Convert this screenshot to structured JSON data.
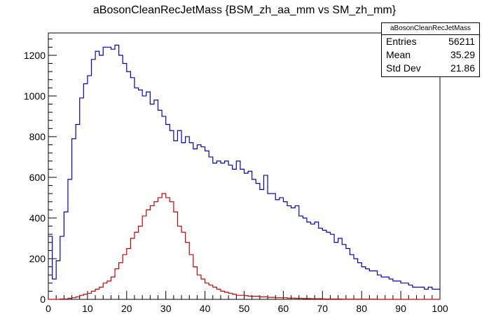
{
  "chart_data": {
    "type": "histogram",
    "title": "aBosonCleanRecJetMass {BSM_zh_aa_mm vs SM_zh_mm}",
    "xlabel": "",
    "ylabel": "",
    "xlim": [
      0,
      100
    ],
    "ylim": [
      0,
      1310
    ],
    "bin_width": 1,
    "x_ticks": [
      0,
      10,
      20,
      30,
      40,
      50,
      60,
      70,
      80,
      90,
      100
    ],
    "y_ticks": [
      0,
      200,
      400,
      600,
      800,
      1000,
      1200
    ],
    "series": [
      {
        "color": "#0000cc",
        "values": [
          310,
          100,
          190,
          310,
          430,
          590,
          790,
          860,
          990,
          1060,
          1100,
          1180,
          1220,
          1200,
          1240,
          1240,
          1230,
          1250,
          1200,
          1160,
          1120,
          1090,
          1040,
          1030,
          1000,
          1020,
          960,
          980,
          930,
          900,
          860,
          830,
          780,
          830,
          770,
          800,
          770,
          740,
          760,
          750,
          730,
          700,
          670,
          680,
          670,
          680,
          660,
          640,
          680,
          640,
          620,
          630,
          590,
          570,
          540,
          610,
          520,
          520,
          490,
          500,
          480,
          460,
          450,
          460,
          410,
          400,
          380,
          370,
          380,
          350,
          340,
          330,
          320,
          280,
          300,
          270,
          250,
          220,
          200,
          180,
          160,
          150,
          140,
          140,
          120,
          110,
          110,
          100,
          90,
          90,
          80,
          80,
          70,
          60,
          60,
          60,
          50,
          60,
          50,
          50
        ]
      },
      {
        "color": "#cc0000",
        "values": [
          0,
          0,
          0,
          2,
          2,
          5,
          8,
          12,
          20,
          25,
          30,
          40,
          50,
          60,
          80,
          90,
          110,
          150,
          180,
          220,
          250,
          300,
          330,
          360,
          410,
          440,
          460,
          480,
          500,
          520,
          500,
          480,
          430,
          360,
          330,
          280,
          220,
          160,
          120,
          100,
          80,
          70,
          60,
          50,
          40,
          35,
          30,
          25,
          20,
          20,
          18,
          16,
          15,
          15,
          12,
          12,
          10,
          10,
          8,
          8,
          8,
          6,
          6,
          5,
          5,
          4,
          4,
          3,
          3,
          3,
          2,
          2,
          2,
          2,
          2,
          1,
          1,
          1,
          1,
          1,
          1,
          1,
          1,
          1,
          0,
          0,
          0,
          0,
          0,
          0,
          0,
          0,
          0,
          0,
          0,
          0,
          0,
          0,
          0,
          0
        ]
      }
    ]
  },
  "stats": {
    "name": "aBosonCleanRecJetMass",
    "entries_label": "Entries",
    "entries_value": "56211",
    "mean_label": "Mean",
    "mean_value": "35.29",
    "std_label": "Std Dev",
    "std_value": "21.86"
  }
}
